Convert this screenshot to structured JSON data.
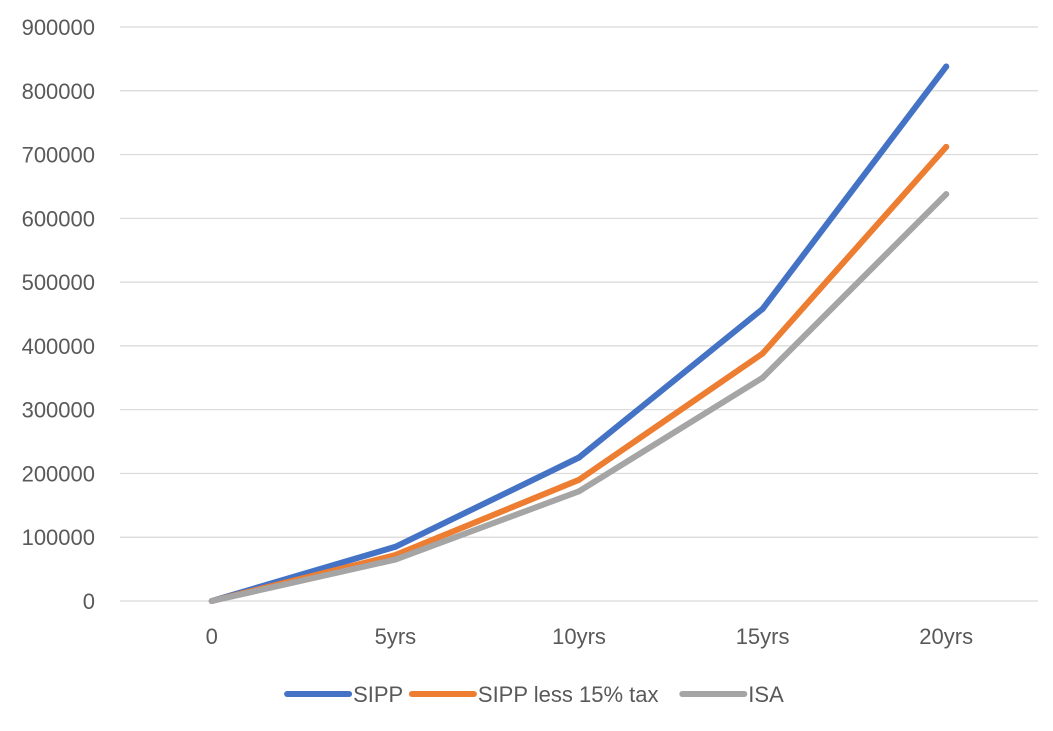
{
  "chart_data": {
    "type": "line",
    "title": "",
    "xlabel": "",
    "ylabel": "",
    "categories": [
      "0",
      "5yrs",
      "10yrs",
      "15yrs",
      "20yrs"
    ],
    "ylim": [
      0,
      900000
    ],
    "yticks": [
      "0",
      "100000",
      "200000",
      "300000",
      "400000",
      "500000",
      "600000",
      "700000",
      "800000",
      "900000"
    ],
    "grid": true,
    "legend_position": "bottom",
    "series": [
      {
        "name": "SIPP",
        "color": "#4472C4",
        "values": [
          0,
          85000,
          225000,
          458000,
          838000
        ]
      },
      {
        "name": "SIPP less 15% tax",
        "color": "#ED7D31",
        "values": [
          0,
          72000,
          190000,
          388000,
          712000
        ]
      },
      {
        "name": "ISA",
        "color": "#A5A5A5",
        "values": [
          0,
          65000,
          172000,
          350000,
          638000
        ]
      }
    ]
  }
}
